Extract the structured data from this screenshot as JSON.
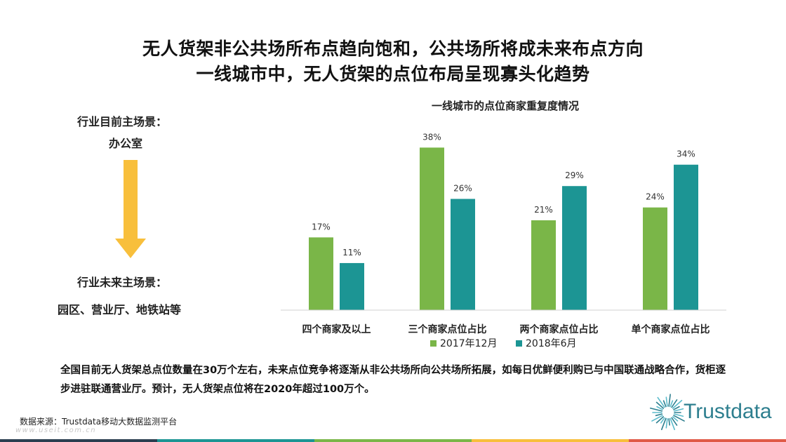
{
  "titles": {
    "line1": "无人货架非公共场所布点趋向饱和，公共场所将成未来布点方向",
    "line2": "一线城市中，无人货架的点位布局呈现寡头化趋势"
  },
  "scenarios": {
    "current_heading": "行业目前主场景：",
    "current_value": "办公室",
    "future_heading": "行业未来主场景：",
    "future_value": "园区、营业厅、地铁站等"
  },
  "chart_data": {
    "type": "bar",
    "title": "一线城市的点位商家重复度情况",
    "categories": [
      "四个商家及以上",
      "三个商家点位占比",
      "两个商家点位占比",
      "单个商家点位占比"
    ],
    "series": [
      {
        "name": "2017年12月",
        "values": [
          17,
          38,
          21,
          24
        ],
        "labels": [
          "17%",
          "38%",
          "21%",
          "24%"
        ],
        "color": "#7ab648"
      },
      {
        "name": "2018年6月",
        "values": [
          11,
          26,
          29,
          34
        ],
        "labels": [
          "11%",
          "26%",
          "29%",
          "34%"
        ],
        "color": "#1c9594"
      }
    ],
    "ylim": [
      0,
      40
    ],
    "grid": false,
    "legend": "bottom-center"
  },
  "summary": "全国目前无人货架总点位数量在30万个左右，未来点位竞争将逐渐从非公共场所向公共场所拓展，如每日优鲜便利购已与中国联通战略合作，货柜逐步进驻联通营业厅。预计，无人货架点位将在2020年超过100万个。",
  "source": "数据来源：Trustdata移动大数据监测平台",
  "watermark": "www.useit.com.cn",
  "brand": "Trustdata",
  "colors": {
    "arrow": "#f8bf3c",
    "brand": "#2e7f8f",
    "bottom_bar": [
      "#2b3e50",
      "#1c9594",
      "#7ab648",
      "#f8bf3c",
      "#e05a47"
    ]
  }
}
